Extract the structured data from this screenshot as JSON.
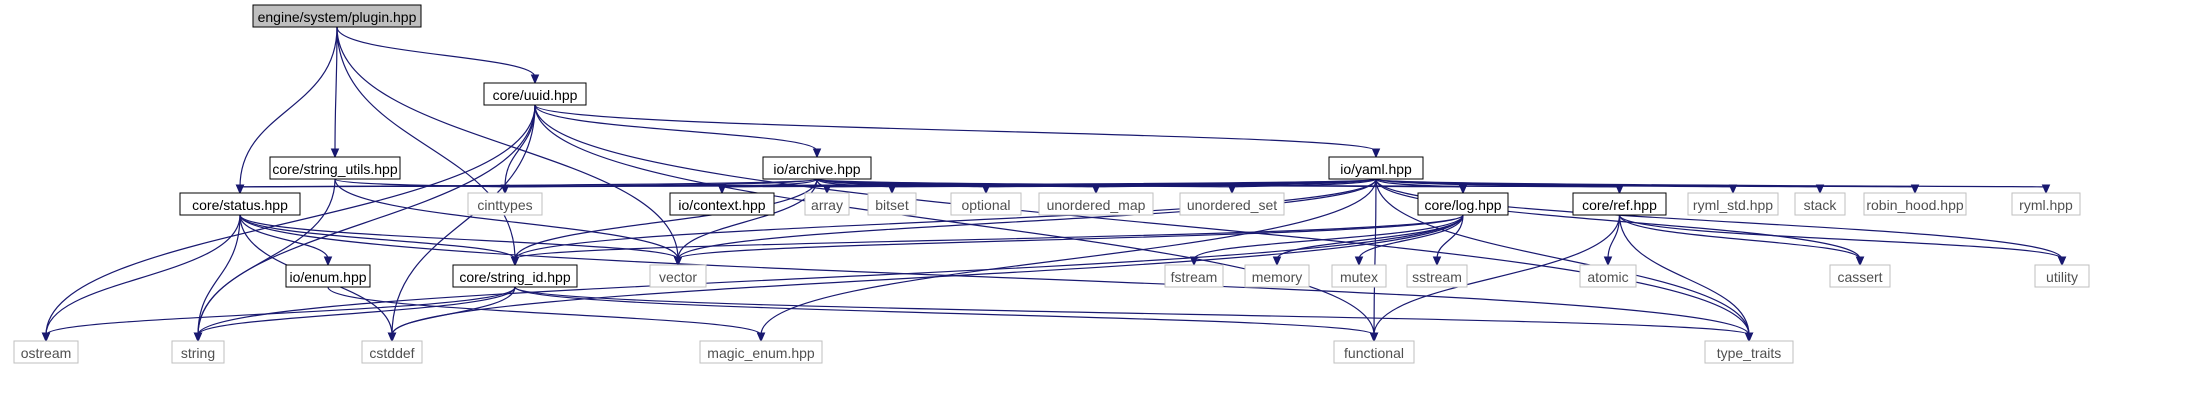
{
  "graph": {
    "root": "engine/system/plugin.hpp",
    "nodes": [
      {
        "id": "plugin",
        "label": "engine/system/plugin.hpp",
        "kind": "root"
      },
      {
        "id": "uuid",
        "label": "core/uuid.hpp",
        "kind": "local"
      },
      {
        "id": "string_utils",
        "label": "core/string_utils.hpp",
        "kind": "local"
      },
      {
        "id": "archive",
        "label": "io/archive.hpp",
        "kind": "local"
      },
      {
        "id": "yaml",
        "label": "io/yaml.hpp",
        "kind": "local"
      },
      {
        "id": "status",
        "label": "core/status.hpp",
        "kind": "local"
      },
      {
        "id": "cinttypes",
        "label": "cinttypes",
        "kind": "system"
      },
      {
        "id": "context",
        "label": "io/context.hpp",
        "kind": "local"
      },
      {
        "id": "array",
        "label": "array",
        "kind": "system"
      },
      {
        "id": "bitset",
        "label": "bitset",
        "kind": "system"
      },
      {
        "id": "optional",
        "label": "optional",
        "kind": "system"
      },
      {
        "id": "unordered_map",
        "label": "unordered_map",
        "kind": "system"
      },
      {
        "id": "unordered_set",
        "label": "unordered_set",
        "kind": "system"
      },
      {
        "id": "log",
        "label": "core/log.hpp",
        "kind": "local"
      },
      {
        "id": "ref",
        "label": "core/ref.hpp",
        "kind": "local"
      },
      {
        "id": "ryml_std",
        "label": "ryml_std.hpp",
        "kind": "system"
      },
      {
        "id": "stack",
        "label": "stack",
        "kind": "system"
      },
      {
        "id": "robin_hood",
        "label": "robin_hood.hpp",
        "kind": "system"
      },
      {
        "id": "ryml",
        "label": "ryml.hpp",
        "kind": "system"
      },
      {
        "id": "enum",
        "label": "io/enum.hpp",
        "kind": "local"
      },
      {
        "id": "string_id",
        "label": "core/string_id.hpp",
        "kind": "local"
      },
      {
        "id": "vector",
        "label": "vector",
        "kind": "system"
      },
      {
        "id": "fstream",
        "label": "fstream",
        "kind": "system"
      },
      {
        "id": "memory",
        "label": "memory",
        "kind": "system"
      },
      {
        "id": "mutex",
        "label": "mutex",
        "kind": "system"
      },
      {
        "id": "sstream",
        "label": "sstream",
        "kind": "system"
      },
      {
        "id": "atomic",
        "label": "atomic",
        "kind": "system"
      },
      {
        "id": "cassert",
        "label": "cassert",
        "kind": "system"
      },
      {
        "id": "utility",
        "label": "utility",
        "kind": "system"
      },
      {
        "id": "ostream",
        "label": "ostream",
        "kind": "system"
      },
      {
        "id": "string",
        "label": "string",
        "kind": "system"
      },
      {
        "id": "cstddef",
        "label": "cstddef",
        "kind": "system"
      },
      {
        "id": "magic_enum",
        "label": "magic_enum.hpp",
        "kind": "system"
      },
      {
        "id": "functional",
        "label": "functional",
        "kind": "system"
      },
      {
        "id": "type_traits",
        "label": "type_traits",
        "kind": "system"
      }
    ],
    "edges": [
      [
        "plugin",
        "uuid"
      ],
      [
        "plugin",
        "string_utils"
      ],
      [
        "plugin",
        "status"
      ],
      [
        "plugin",
        "string_id"
      ],
      [
        "plugin",
        "vector"
      ],
      [
        "uuid",
        "archive"
      ],
      [
        "uuid",
        "yaml"
      ],
      [
        "uuid",
        "cinttypes"
      ],
      [
        "uuid",
        "ostream"
      ],
      [
        "uuid",
        "string"
      ],
      [
        "uuid",
        "cstddef"
      ],
      [
        "uuid",
        "functional"
      ],
      [
        "uuid",
        "type_traits"
      ],
      [
        "string_utils",
        "cinttypes"
      ],
      [
        "string_utils",
        "string"
      ],
      [
        "string_utils",
        "vector"
      ],
      [
        "archive",
        "status"
      ],
      [
        "archive",
        "cinttypes"
      ],
      [
        "archive",
        "context"
      ],
      [
        "archive",
        "array"
      ],
      [
        "archive",
        "bitset"
      ],
      [
        "archive",
        "optional"
      ],
      [
        "archive",
        "unordered_map"
      ],
      [
        "archive",
        "unordered_set"
      ],
      [
        "archive",
        "log"
      ],
      [
        "archive",
        "ref"
      ],
      [
        "archive",
        "string_id"
      ],
      [
        "archive",
        "vector"
      ],
      [
        "yaml",
        "status"
      ],
      [
        "yaml",
        "cinttypes"
      ],
      [
        "yaml",
        "context"
      ],
      [
        "yaml",
        "array"
      ],
      [
        "yaml",
        "bitset"
      ],
      [
        "yaml",
        "optional"
      ],
      [
        "yaml",
        "unordered_map"
      ],
      [
        "yaml",
        "unordered_set"
      ],
      [
        "yaml",
        "log"
      ],
      [
        "yaml",
        "ref"
      ],
      [
        "yaml",
        "ryml_std"
      ],
      [
        "yaml",
        "stack"
      ],
      [
        "yaml",
        "robin_hood"
      ],
      [
        "yaml",
        "ryml"
      ],
      [
        "yaml",
        "cassert"
      ],
      [
        "yaml",
        "utility"
      ],
      [
        "yaml",
        "string_id"
      ],
      [
        "yaml",
        "vector"
      ],
      [
        "yaml",
        "magic_enum"
      ],
      [
        "yaml",
        "functional"
      ],
      [
        "yaml",
        "type_traits"
      ],
      [
        "status",
        "enum"
      ],
      [
        "status",
        "string_id"
      ],
      [
        "status",
        "ostream"
      ],
      [
        "status",
        "string"
      ],
      [
        "status",
        "cstddef"
      ],
      [
        "status",
        "vector"
      ],
      [
        "status",
        "type_traits"
      ],
      [
        "log",
        "string_id"
      ],
      [
        "log",
        "vector"
      ],
      [
        "log",
        "fstream"
      ],
      [
        "log",
        "memory"
      ],
      [
        "log",
        "mutex"
      ],
      [
        "log",
        "sstream"
      ],
      [
        "log",
        "string"
      ],
      [
        "log",
        "cstddef"
      ],
      [
        "ref",
        "atomic"
      ],
      [
        "ref",
        "cassert"
      ],
      [
        "ref",
        "utility"
      ],
      [
        "ref",
        "functional"
      ],
      [
        "ref",
        "type_traits"
      ],
      [
        "enum",
        "magic_enum"
      ],
      [
        "string_id",
        "ostream"
      ],
      [
        "string_id",
        "string"
      ],
      [
        "string_id",
        "cstddef"
      ],
      [
        "string_id",
        "functional"
      ],
      [
        "string_id",
        "type_traits"
      ]
    ]
  }
}
